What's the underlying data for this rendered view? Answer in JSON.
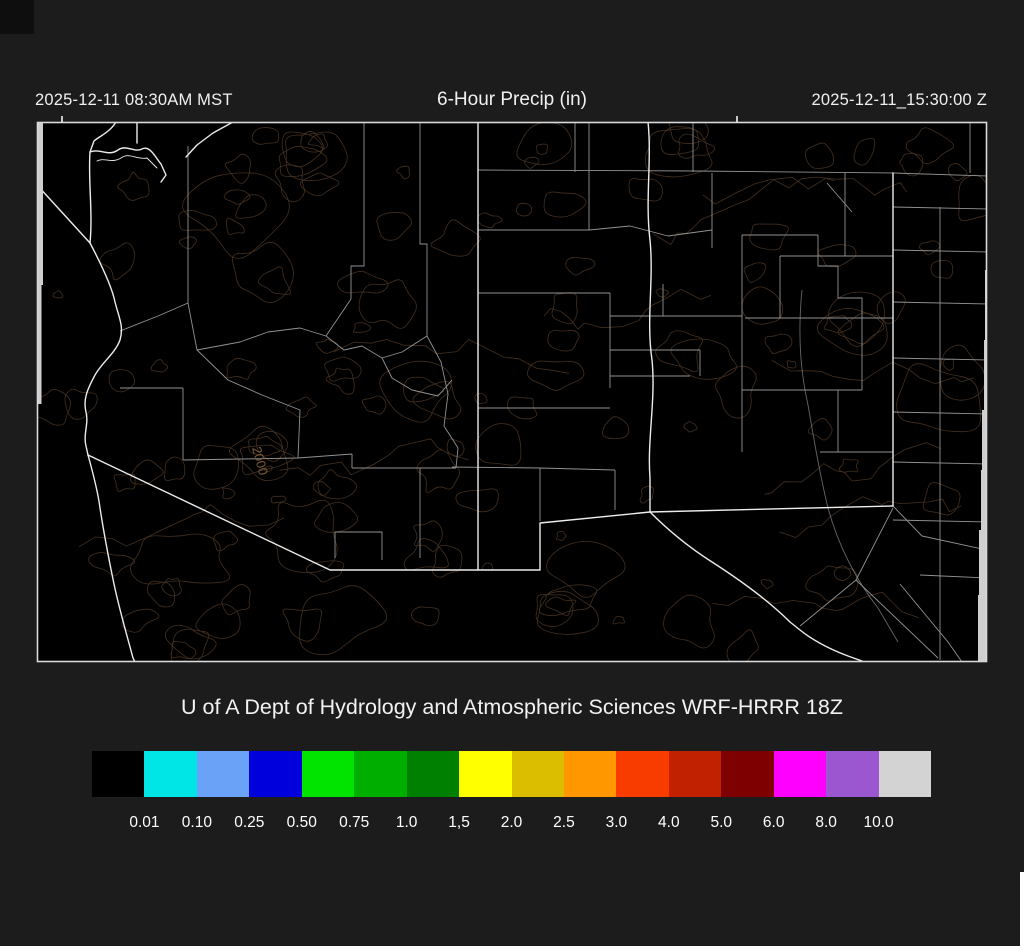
{
  "header": {
    "left_timestamp": "2025-12-11 08:30AM MST",
    "title": "6-Hour Precip (in)",
    "right_timestamp": "2025-12-11_15:30:00 Z"
  },
  "map": {
    "contour_label": "2000",
    "background": "#000000",
    "state_line_color": "#ececec",
    "county_line_color": "#9a9a9a",
    "contour_color": "#4a3424",
    "out_of_domain_color": "#cfcfcf"
  },
  "footer": {
    "credit": "U of A Dept of Hydrology and Atmospheric Sciences WRF-HRRR 18Z"
  },
  "colorbar": {
    "swatch_colors": [
      "#000000",
      "#00E6E6",
      "#6AA2F7",
      "#0000DC",
      "#00E400",
      "#00AE00",
      "#008000",
      "#FFFF00",
      "#DBBE00",
      "#FF9700",
      "#F83C00",
      "#C22100",
      "#7E0000",
      "#FE00FE",
      "#9A57D0",
      "#D3D3D3"
    ],
    "labels": [
      "0.01",
      "0.10",
      "0.25",
      "0.50",
      "0.75",
      "1.0",
      "1,5",
      "2.0",
      "2.5",
      "3.0",
      "4.0",
      "5.0",
      "6.0",
      "8.0",
      "10.0"
    ]
  }
}
